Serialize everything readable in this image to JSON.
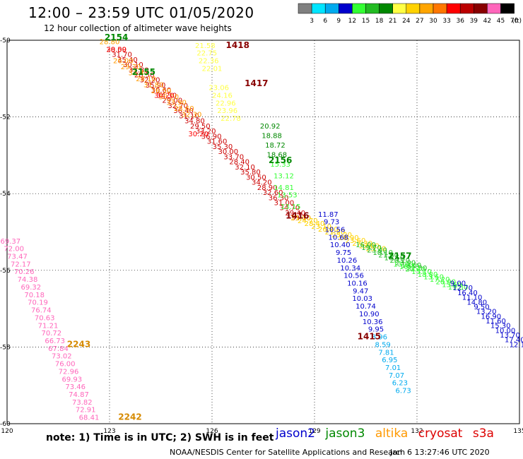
{
  "header": {
    "title": "12:00 – 23:59 UTC 01/05/2020",
    "subtitle": "12 hour collection of altimeter wave heights"
  },
  "color_scale": {
    "ticks": [
      "3",
      "6",
      "9",
      "12",
      "15",
      "18",
      "21",
      "24",
      "27",
      "30",
      "33",
      "36",
      "39",
      "42",
      "45",
      "70"
    ],
    "unit": "(ft)",
    "colors": [
      "#808080",
      "#00e5ff",
      "#00aaee",
      "#0000cc",
      "#33ff33",
      "#22bb22",
      "#008800",
      "#ffff44",
      "#ffd200",
      "#ffa500",
      "#ff7700",
      "#ff0000",
      "#bb0000",
      "#880000",
      "#ff66bb",
      "#000000"
    ]
  },
  "chart_data": {
    "type": "scatter",
    "xlim": [
      120,
      135
    ],
    "ylim": [
      -60,
      -50
    ],
    "x_ticks": [
      "120",
      "123",
      "126",
      "129",
      "132",
      "135"
    ],
    "y_ticks": [
      "-50",
      "-52",
      "-54",
      "-56",
      "-58",
      "-60"
    ],
    "grid": true,
    "series": [
      {
        "name": "jason2",
        "color": "#0000cc",
        "points": [
          {
            "x": 129.4,
            "y": -54.6,
            "label": "11.87"
          },
          {
            "x": 129.5,
            "y": -54.8,
            "label": "9.73"
          },
          {
            "x": 129.6,
            "y": -55.0,
            "label": "10.56"
          },
          {
            "x": 129.7,
            "y": -55.2,
            "label": "10.68"
          },
          {
            "x": 129.75,
            "y": -55.4,
            "label": "10.40"
          },
          {
            "x": 129.85,
            "y": -55.6,
            "label": "9.75"
          },
          {
            "x": 129.95,
            "y": -55.8,
            "label": "10.26"
          },
          {
            "x": 130.05,
            "y": -56.0,
            "label": "10.34"
          },
          {
            "x": 130.15,
            "y": -56.2,
            "label": "10.56"
          },
          {
            "x": 130.25,
            "y": -56.4,
            "label": "10.16"
          },
          {
            "x": 130.35,
            "y": -56.6,
            "label": "9.47"
          },
          {
            "x": 130.4,
            "y": -56.8,
            "label": "10.03"
          },
          {
            "x": 130.5,
            "y": -57.0,
            "label": "10.74"
          },
          {
            "x": 130.6,
            "y": -57.2,
            "label": "10.90"
          },
          {
            "x": 130.7,
            "y": -57.4,
            "label": "10.36"
          },
          {
            "x": 130.8,
            "y": -57.6,
            "label": "9.95"
          }
        ]
      },
      {
        "name": "",
        "color": "#00aaee",
        "points": [
          {
            "x": 130.9,
            "y": -57.8,
            "label": "8.96"
          },
          {
            "x": 131.0,
            "y": -58.0,
            "label": "8.59"
          },
          {
            "x": 131.1,
            "y": -58.2,
            "label": "7.81"
          },
          {
            "x": 131.2,
            "y": -58.4,
            "label": "6.95"
          },
          {
            "x": 131.3,
            "y": -58.6,
            "label": "7.01"
          },
          {
            "x": 131.4,
            "y": -58.8,
            "label": "7.07"
          },
          {
            "x": 131.5,
            "y": -59.0,
            "label": "6.23"
          },
          {
            "x": 131.6,
            "y": -59.2,
            "label": "6.73"
          }
        ]
      },
      {
        "name": "jason3",
        "color": "#33ff33",
        "points": [
          {
            "x": 128.0,
            "y": -53.3,
            "label": "15.33"
          },
          {
            "x": 128.1,
            "y": -53.6,
            "label": "13.12"
          },
          {
            "x": 128.1,
            "y": -53.9,
            "label": "14.81"
          },
          {
            "x": 128.2,
            "y": -54.1,
            "label": "13.53"
          },
          {
            "x": 128.3,
            "y": -54.4,
            "label": "13.15"
          }
        ]
      },
      {
        "name": "",
        "color": "#008800",
        "points": [
          {
            "x": 127.7,
            "y": -52.3,
            "label": "20.92"
          },
          {
            "x": 127.75,
            "y": -52.55,
            "label": "18.88"
          },
          {
            "x": 127.85,
            "y": -52.8,
            "label": "18.72"
          },
          {
            "x": 127.9,
            "y": -53.05,
            "label": "18.68"
          }
        ]
      },
      {
        "name": "altika",
        "color": "#ffff44",
        "points": [
          {
            "x": 125.8,
            "y": -50.2,
            "label": "21.58"
          },
          {
            "x": 125.85,
            "y": -50.4,
            "label": "22.75"
          },
          {
            "x": 125.9,
            "y": -50.6,
            "label": "22.36"
          },
          {
            "x": 126.0,
            "y": -50.8,
            "label": "22.01"
          },
          {
            "x": 126.2,
            "y": -51.3,
            "label": "23.06"
          },
          {
            "x": 126.3,
            "y": -51.5,
            "label": "24.16"
          },
          {
            "x": 126.4,
            "y": -51.7,
            "label": "22.96"
          },
          {
            "x": 126.45,
            "y": -51.9,
            "label": "23.96"
          },
          {
            "x": 126.55,
            "y": -52.1,
            "label": "22.78"
          }
        ]
      },
      {
        "name": "cryosat",
        "color": "#ff0000",
        "points": [
          {
            "x": 123.2,
            "y": -50.3,
            "label": "30.59"
          },
          {
            "x": 124.6,
            "y": -51.5,
            "label": "30.20"
          },
          {
            "x": 125.6,
            "y": -52.5,
            "label": "30.20"
          }
        ]
      },
      {
        "name": "",
        "color": "#ffa500",
        "points": [
          {
            "x": 123.0,
            "y": -50.1,
            "label": "28.80"
          }
        ]
      },
      {
        "name": "s3a",
        "color": "#ff66bb",
        "points": [
          {
            "x": 120.1,
            "y": -55.3,
            "label": "69.37"
          },
          {
            "x": 120.2,
            "y": -55.5,
            "label": "72.00"
          },
          {
            "x": 120.3,
            "y": -55.7,
            "label": "73.47"
          },
          {
            "x": 120.4,
            "y": -55.9,
            "label": "72.17"
          },
          {
            "x": 120.5,
            "y": -56.1,
            "label": "70.26"
          },
          {
            "x": 120.6,
            "y": -56.3,
            "label": "74.38"
          },
          {
            "x": 120.7,
            "y": -56.5,
            "label": "69.32"
          },
          {
            "x": 120.8,
            "y": -56.7,
            "label": "70.18"
          },
          {
            "x": 120.9,
            "y": -56.9,
            "label": "70.19"
          },
          {
            "x": 121.0,
            "y": -57.1,
            "label": "76.74"
          },
          {
            "x": 121.1,
            "y": -57.3,
            "label": "70.63"
          },
          {
            "x": 121.2,
            "y": -57.5,
            "label": "71.21"
          },
          {
            "x": 121.3,
            "y": -57.7,
            "label": "70.72"
          },
          {
            "x": 121.4,
            "y": -57.9,
            "label": "66.73"
          },
          {
            "x": 121.5,
            "y": -58.1,
            "label": "67.84"
          },
          {
            "x": 121.6,
            "y": -58.3,
            "label": "73.02"
          },
          {
            "x": 121.7,
            "y": -58.5,
            "label": "76.00"
          },
          {
            "x": 121.8,
            "y": -58.7,
            "label": "72.96"
          },
          {
            "x": 121.9,
            "y": -58.9,
            "label": "69.93"
          },
          {
            "x": 122.0,
            "y": -59.1,
            "label": "73.46"
          },
          {
            "x": 122.1,
            "y": -59.3,
            "label": "74.87"
          },
          {
            "x": 122.2,
            "y": -59.5,
            "label": "73.82"
          },
          {
            "x": 122.3,
            "y": -59.7,
            "label": "72.91"
          },
          {
            "x": 122.4,
            "y": -59.9,
            "label": "68.41"
          }
        ]
      }
    ],
    "time_labels": [
      {
        "x": 123.2,
        "y": -50.0,
        "label": "2154",
        "color": "#008800"
      },
      {
        "x": 124.0,
        "y": -50.9,
        "label": "2155",
        "color": "#008800"
      },
      {
        "x": 128.0,
        "y": -53.2,
        "label": "2156",
        "color": "#008800"
      },
      {
        "x": 131.5,
        "y": -55.7,
        "label": "2157",
        "color": "#008800"
      },
      {
        "x": 126.75,
        "y": -50.2,
        "label": "1418",
        "color": "#880000"
      },
      {
        "x": 127.3,
        "y": -51.2,
        "label": "1417",
        "color": "#880000"
      },
      {
        "x": 128.5,
        "y": -54.65,
        "label": "1416",
        "color": "#880000"
      },
      {
        "x": 130.6,
        "y": -57.8,
        "label": "1415",
        "color": "#880000"
      },
      {
        "x": 122.1,
        "y": -58.0,
        "label": "2243",
        "color": "#d68a00"
      },
      {
        "x": 123.6,
        "y": -59.9,
        "label": "2242",
        "color": "#d68a00"
      }
    ]
  },
  "note": "note: 1) Time is in UTC; 2) SWH is in feet",
  "legend": [
    {
      "label": "jason2",
      "color": "#0000cc"
    },
    {
      "label": "jason3",
      "color": "#008800"
    },
    {
      "label": "altika",
      "color": "#ff9900"
    },
    {
      "label": "cryosat",
      "color": "#dd0000"
    },
    {
      "label": "s3a",
      "color": "#dd0000"
    }
  ],
  "footer": "NOAA/NESDIS Center for Satellite Applications and Research",
  "footer_time": "Jan  6 13:27:46 UTC 2020"
}
